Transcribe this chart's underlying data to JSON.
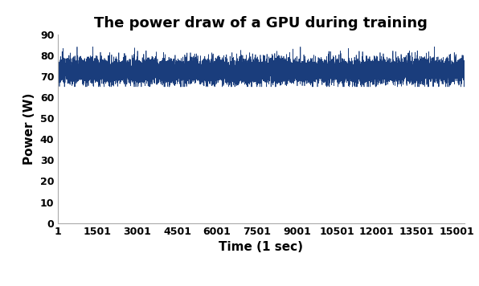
{
  "title": "The power draw of a GPU during training",
  "xlabel": "Time (1 sec)",
  "ylabel": "Power (W)",
  "n_points": 15301,
  "mean_power": 72.5,
  "std_power": 2.8,
  "ylim": [
    0,
    90
  ],
  "xlim": [
    1,
    15301
  ],
  "yticks": [
    0,
    10,
    20,
    30,
    40,
    50,
    60,
    70,
    80,
    90
  ],
  "xticks": [
    1,
    1501,
    3001,
    4501,
    6001,
    7501,
    9001,
    10501,
    12001,
    13501,
    15001
  ],
  "line_color": "#1a3d7c",
  "line_width": 0.5,
  "background_color": "#ffffff",
  "title_fontsize": 13,
  "axis_label_fontsize": 11,
  "tick_fontsize": 9,
  "seed": 42
}
